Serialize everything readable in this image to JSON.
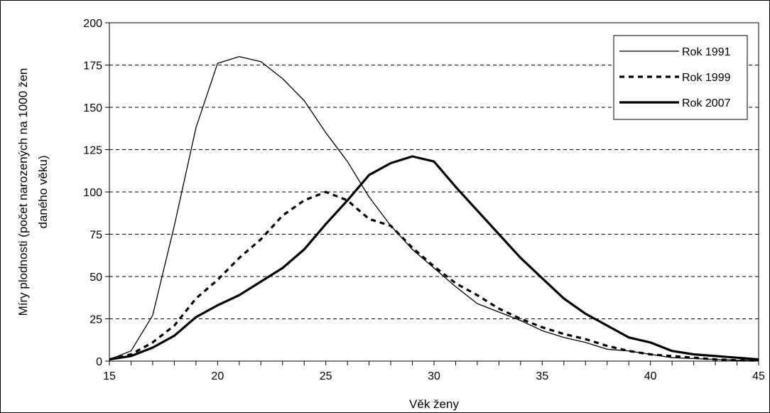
{
  "chart_data": {
    "type": "line",
    "title": "",
    "xlabel": "Věk ženy",
    "ylabel_line1": "Míry plodnosti (počet narozených na 1000 žen",
    "ylabel_line2": "daného věku)",
    "xlim": [
      15,
      45
    ],
    "ylim": [
      0,
      200
    ],
    "x_ticks": [
      15,
      20,
      25,
      30,
      35,
      40,
      45
    ],
    "y_ticks": [
      0,
      25,
      50,
      75,
      100,
      125,
      150,
      175,
      200
    ],
    "grid": "horizontal-dashed",
    "legend_position": "top-right",
    "x": [
      15,
      16,
      17,
      18,
      19,
      20,
      21,
      22,
      23,
      24,
      25,
      26,
      27,
      28,
      29,
      30,
      31,
      32,
      33,
      34,
      35,
      36,
      37,
      38,
      39,
      40,
      41,
      42,
      43,
      44,
      45
    ],
    "series": [
      {
        "name": "Rok 1991",
        "style": "thin",
        "values": [
          1,
          6,
          27,
          80,
          138,
          176,
          180,
          177,
          167,
          154,
          135,
          118,
          97,
          80,
          66,
          55,
          44,
          34,
          29,
          24,
          18,
          14,
          11,
          7,
          6,
          4,
          2,
          1.5,
          1,
          0.5,
          0.3
        ]
      },
      {
        "name": "Rok 1999",
        "style": "dashed",
        "values": [
          1,
          4,
          11,
          21,
          37,
          48,
          61,
          72,
          86,
          95,
          100,
          95,
          84,
          80,
          67,
          56,
          46,
          39,
          31,
          25,
          20,
          16,
          13,
          9,
          6,
          4,
          3,
          2,
          1,
          0.5,
          0.3
        ]
      },
      {
        "name": "Rok 2007",
        "style": "thick",
        "values": [
          1,
          3,
          8,
          15,
          26,
          33,
          39,
          47,
          55,
          66,
          81,
          95,
          110,
          117,
          121,
          118,
          103,
          89,
          75,
          61,
          49,
          37,
          28,
          21,
          14,
          11,
          6,
          4,
          3,
          2,
          1
        ]
      }
    ]
  }
}
